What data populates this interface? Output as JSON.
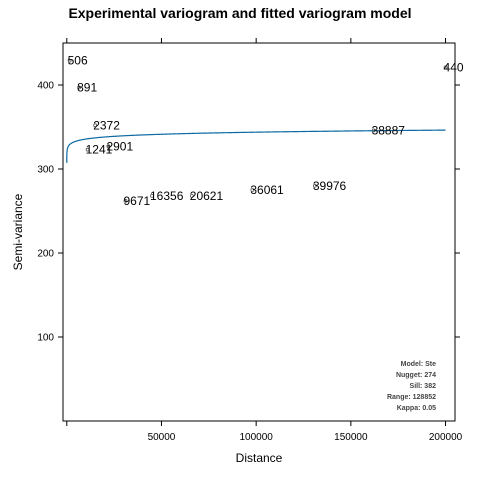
{
  "chart_data": {
    "type": "scatter",
    "title": "Experimental variogram and fitted variogram model",
    "xlabel": "Distance",
    "ylabel": "Semi-variance",
    "xlim": [
      -2000,
      205000
    ],
    "ylim": [
      0,
      450
    ],
    "x_ticks": [
      {
        "value": 50000,
        "label": "50000"
      },
      {
        "value": 100000,
        "label": "100000"
      },
      {
        "value": 150000,
        "label": "150000"
      },
      {
        "value": 200000,
        "label": "200000"
      }
    ],
    "y_ticks": [
      {
        "value": 100,
        "label": "100"
      },
      {
        "value": 200,
        "label": "200"
      },
      {
        "value": 300,
        "label": "300"
      },
      {
        "value": 400,
        "label": "400"
      }
    ],
    "points": [
      {
        "x": 1500,
        "y": 429,
        "label": "506"
      },
      {
        "x": 6500,
        "y": 397,
        "label": "891"
      },
      {
        "x": 11000,
        "y": 323,
        "label": "1241"
      },
      {
        "x": 15000,
        "y": 352,
        "label": "2372"
      },
      {
        "x": 22000,
        "y": 327,
        "label": "2901"
      },
      {
        "x": 31000,
        "y": 262,
        "label": "9671"
      },
      {
        "x": 45000,
        "y": 268,
        "label": "16356"
      },
      {
        "x": 66000,
        "y": 268,
        "label": "20621"
      },
      {
        "x": 98000,
        "y": 275,
        "label": "36061"
      },
      {
        "x": 131000,
        "y": 280,
        "label": "39976"
      },
      {
        "x": 162000,
        "y": 346,
        "label": "38887"
      },
      {
        "x": 200000,
        "y": 421,
        "label": "440"
      }
    ],
    "fitted_model": {
      "model": "Ste",
      "nugget": 274,
      "sill": 382,
      "range": 128852,
      "kappa": 0.05,
      "color": "#0a6aa1"
    },
    "legend": {
      "placement": "bottom-right",
      "lines": [
        "Model: Ste",
        "Nugget: 274",
        "Sill: 382",
        "Range: 128852",
        "Kappa: 0.05"
      ]
    }
  }
}
